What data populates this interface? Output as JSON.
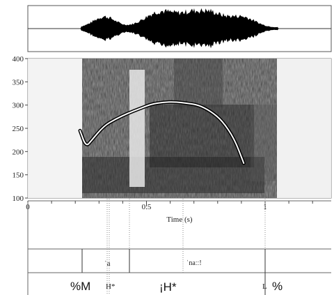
{
  "colors": {
    "ink": "#111111",
    "pitch_track": "#ffffff",
    "grid": "#b8b8b8"
  },
  "spectrogram": {
    "y_ticks": [
      "100",
      "150",
      "200",
      "250",
      "300",
      "350",
      "400"
    ],
    "y_range": [
      100,
      400
    ]
  },
  "time_axis": {
    "ticks": [
      "0",
      "0.5",
      "1"
    ],
    "label": "Time (s)",
    "range_s": [
      0,
      1.3
    ]
  },
  "pitch_contour_hz": [
    {
      "t": 0.22,
      "f": 245
    },
    {
      "t": 0.245,
      "f": 210
    },
    {
      "t": 0.27,
      "f": 225
    },
    {
      "t": 0.32,
      "f": 255
    },
    {
      "t": 0.37,
      "f": 270
    },
    {
      "t": 0.42,
      "f": 282
    },
    {
      "t": 0.47,
      "f": 292
    },
    {
      "t": 0.52,
      "f": 302
    },
    {
      "t": 0.57,
      "f": 306
    },
    {
      "t": 0.62,
      "f": 307
    },
    {
      "t": 0.67,
      "f": 304
    },
    {
      "t": 0.72,
      "f": 300
    },
    {
      "t": 0.77,
      "f": 287
    },
    {
      "t": 0.82,
      "f": 266
    },
    {
      "t": 0.87,
      "f": 228
    },
    {
      "t": 0.91,
      "f": 175
    }
  ],
  "tiers": {
    "syllables": [
      "ˈa",
      "ˈnaːː!"
    ],
    "tones": {
      "boundary_start": "%M",
      "accent_small": "H*",
      "accent_big": "¡H*",
      "final_low": "L",
      "boundary_end": "%"
    }
  }
}
